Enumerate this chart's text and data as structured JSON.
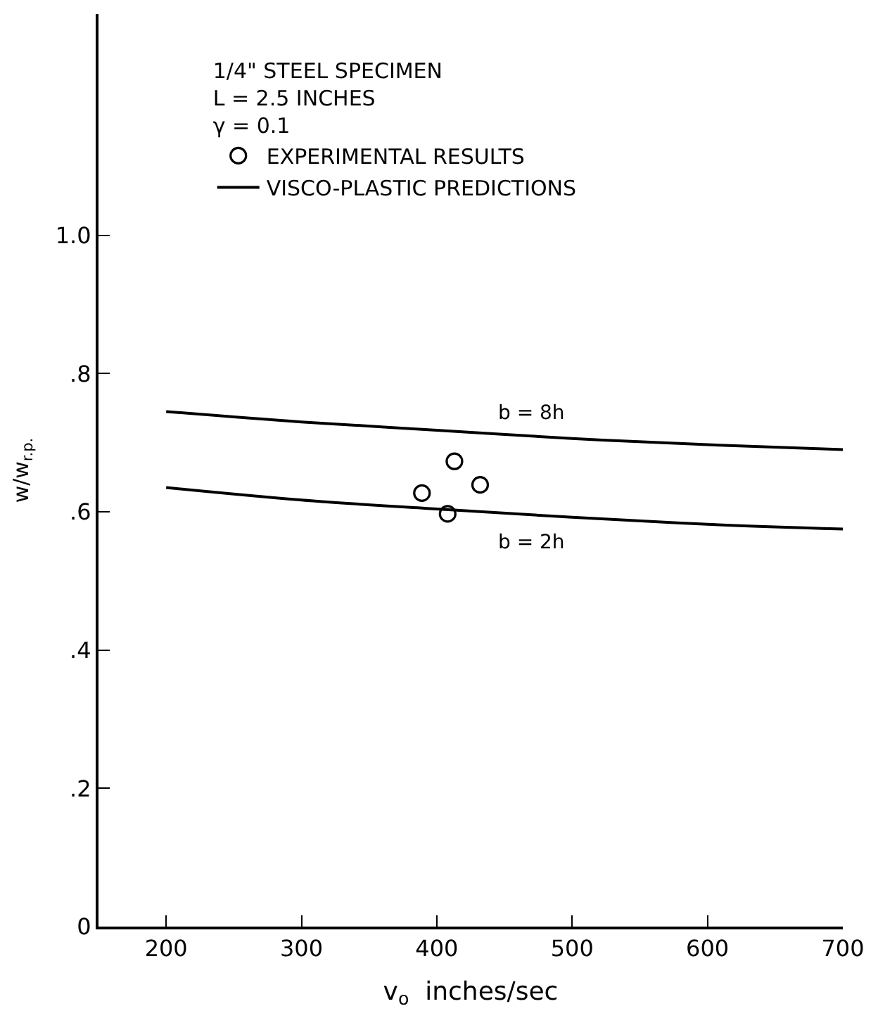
{
  "chart_data": {
    "type": "line",
    "xlabel": "v$_{o}$  inches/sec",
    "ylabel": "w/w$_{r.p.}$",
    "legend_title": "1/4\" STEEL SPECIMEN\nL = 2.5 INCHES\nγ = 0.1",
    "annotations": [
      "VISCO-PLASTIC PREDICTIONS"
    ],
    "series": [
      {
        "name": "EXPERIMENTAL RESULTS",
        "type": "scatter",
        "color": "#000000",
        "marker": "circle",
        "x": [
          389,
          413,
          432,
          408
        ],
        "values": [
          0.627,
          0.673,
          0.639,
          0.597
        ]
      },
      {
        "name": "b = 8h",
        "color": "#000000",
        "x": [
          200,
          300,
          400,
          500,
          600,
          700
        ],
        "values": [
          0.745,
          0.73,
          0.718,
          0.706,
          0.697,
          0.69
        ]
      },
      {
        "name": "b = 2h",
        "color": "#000000",
        "x": [
          200,
          300,
          400,
          500,
          600,
          700
        ],
        "values": [
          0.635,
          0.617,
          0.604,
          0.592,
          0.582,
          0.575
        ]
      }
    ],
    "xlim": [
      150,
      700
    ],
    "xticks": [
      200,
      300,
      400,
      500,
      600,
      700
    ],
    "ylim": [
      0,
      1.32
    ],
    "yticks": [
      0,
      {
        "value": 0.2,
        "label": ".2"
      },
      {
        "value": 0.4,
        "label": ".4"
      },
      {
        "value": 0.6,
        "label": ".6"
      },
      {
        "value": 0.8,
        "label": ".8"
      },
      {
        "value": 1.0,
        "label": "1.0"
      }
    ],
    "grid": false,
    "legend": "top",
    "line_style": "solid"
  }
}
